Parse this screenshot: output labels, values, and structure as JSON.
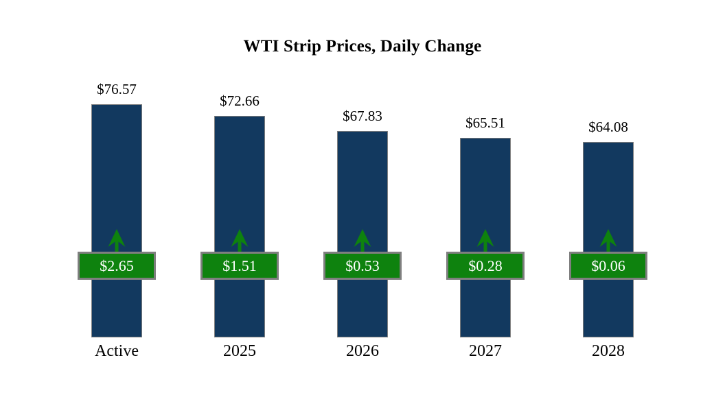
{
  "title": "WTI Strip Prices, Daily Change",
  "colors": {
    "background": "#ffffff",
    "bar_fill": "#12395f",
    "bar_border": "#7f7f7f",
    "badge_fill": "#0e820e",
    "badge_border": "#7f7f7f",
    "badge_text": "#ffffff",
    "arrow": "#0e820e",
    "label_text": "#000000"
  },
  "chart_data": {
    "type": "bar",
    "title": "WTI Strip Prices, Daily Change",
    "categories": [
      "Active",
      "2025",
      "2026",
      "2027",
      "2028"
    ],
    "series": [
      {
        "name": "WTI Strip Price",
        "values": [
          76.57,
          72.66,
          67.83,
          65.51,
          64.08
        ],
        "labels": [
          "$76.57",
          "$72.66",
          "$67.83",
          "$65.51",
          "$64.08"
        ]
      },
      {
        "name": "Daily Change",
        "values": [
          2.65,
          1.51,
          0.53,
          0.28,
          0.06
        ],
        "labels": [
          "$2.65",
          "$1.51",
          "$0.53",
          "$0.28",
          "$0.06"
        ],
        "direction": "up"
      }
    ],
    "xlabel": "",
    "ylabel": "",
    "ylim": [
      0,
      80
    ],
    "grid": false,
    "legend": false,
    "annotations": "green up-arrow above each daily-change badge indicates positive change"
  }
}
